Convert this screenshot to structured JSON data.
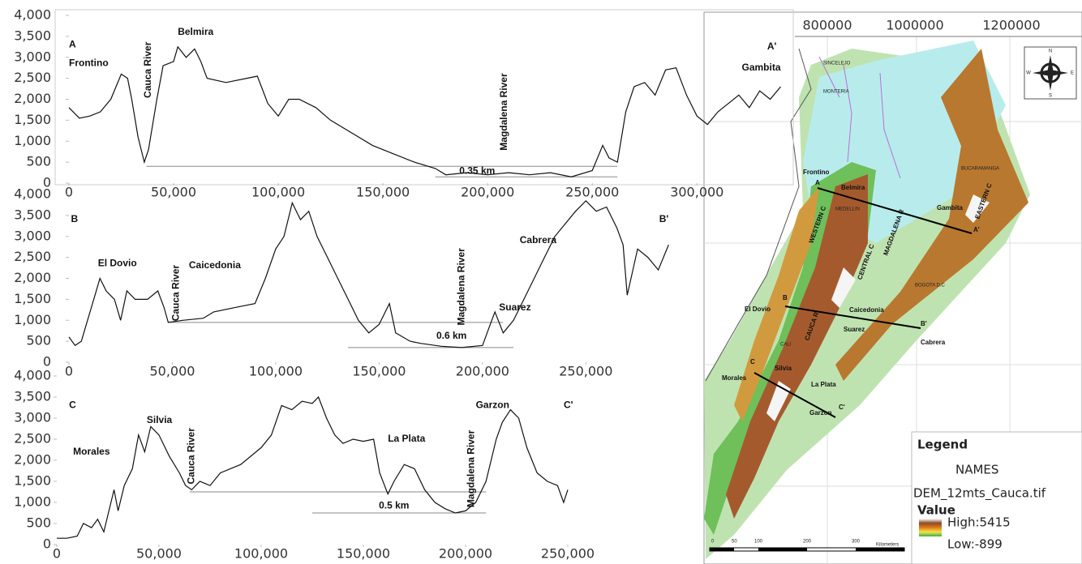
{
  "chart_data": [
    {
      "type": "line",
      "color": "#111111",
      "x": [
        0,
        5000,
        10000,
        15000,
        20000,
        25000,
        28000,
        30000,
        33000,
        36000,
        38000,
        42000,
        45000,
        50000,
        52000,
        56000,
        60000,
        63000,
        66000,
        75000,
        85000,
        90000,
        95000,
        100000,
        105000,
        110000,
        118000,
        125000,
        135000,
        145000,
        155000,
        165000,
        175000,
        180000,
        190000,
        200000,
        210000,
        220000,
        230000,
        240000,
        250000,
        255000,
        258000,
        262000,
        266000,
        270000,
        275000,
        280000,
        285000,
        290000,
        295000,
        300000,
        305000,
        310000,
        315000,
        320000,
        325000,
        330000,
        335000,
        340000
      ],
      "values": [
        1800,
        1550,
        1600,
        1700,
        2000,
        2600,
        2500,
        2000,
        1100,
        500,
        800,
        2000,
        2800,
        2900,
        3250,
        3000,
        3200,
        2900,
        2500,
        2400,
        2500,
        2550,
        1900,
        1600,
        2000,
        2000,
        1800,
        1500,
        1200,
        900,
        700,
        500,
        350,
        200,
        250,
        200,
        250,
        200,
        250,
        150,
        300,
        900,
        600,
        500,
        1700,
        2300,
        2400,
        2100,
        2700,
        2750,
        2100,
        1600,
        1400,
        1700,
        1900,
        2100,
        1800,
        2200,
        2000,
        2300
      ],
      "xlim": [
        0,
        346000
      ],
      "ylim": [
        0,
        4000
      ],
      "xticks": [
        0,
        {
          "value": 50000,
          "label": "50,000"
        },
        {
          "value": 100000,
          "label": "100,000"
        },
        {
          "value": 150000,
          "label": "150,000"
        },
        {
          "value": 200000,
          "label": "200,000"
        },
        {
          "value": 250000,
          "label": "250,000"
        },
        {
          "value": 300000,
          "label": "300,000"
        }
      ],
      "yticks": [
        0,
        500,
        {
          "value": 1000,
          "label": "1,000"
        },
        {
          "value": 1500,
          "label": "1,500"
        },
        {
          "value": 2000,
          "label": "2,000"
        },
        {
          "value": 2500,
          "label": "2,500"
        },
        {
          "value": 3000,
          "label": "3,000"
        },
        {
          "value": 3500,
          "label": "3,500"
        },
        {
          "value": 4000,
          "label": "4,000"
        }
      ],
      "reference_lines": [
        {
          "y": 400,
          "x": [
            37000,
            262000
          ]
        },
        {
          "y": 150,
          "x": [
            175000,
            262000
          ]
        }
      ],
      "annotations": [
        "A",
        "Frontino",
        "Cauca River",
        "Belmira",
        "Magdalena River",
        "0.35 km",
        "A'",
        "Gambita"
      ]
    },
    {
      "type": "line",
      "color": "#111111",
      "x": [
        0,
        3000,
        6000,
        9000,
        12000,
        15000,
        18000,
        22000,
        25000,
        28000,
        32000,
        38000,
        43000,
        46000,
        48000,
        55000,
        65000,
        70000,
        80000,
        90000,
        95000,
        100000,
        104000,
        108000,
        112000,
        116000,
        120000,
        125000,
        130000,
        135000,
        140000,
        145000,
        150000,
        155000,
        158000,
        165000,
        170000,
        180000,
        190000,
        200000,
        203000,
        206000,
        210000,
        215000,
        220000,
        225000,
        230000,
        235000,
        240000,
        245000,
        250000,
        255000,
        260000,
        265000,
        268000,
        270000,
        275000,
        280000,
        285000,
        290000
      ],
      "values": [
        600,
        400,
        500,
        1000,
        1500,
        2000,
        1700,
        1500,
        1000,
        1700,
        1500,
        1500,
        1700,
        1300,
        950,
        1000,
        1050,
        1200,
        1300,
        1400,
        2000,
        2700,
        3000,
        3800,
        3400,
        3600,
        3000,
        2500,
        2000,
        1500,
        1000,
        700,
        900,
        1400,
        700,
        500,
        450,
        380,
        350,
        400,
        800,
        1200,
        700,
        1000,
        1500,
        2000,
        2500,
        3000,
        3300,
        3600,
        3850,
        3600,
        3700,
        3200,
        2800,
        1600,
        2700,
        2500,
        2200,
        2800
      ],
      "xlim": [
        0,
        304000
      ],
      "ylim": [
        0,
        4000
      ],
      "xticks": [
        0,
        {
          "value": 50000,
          "label": "50,000"
        },
        {
          "value": 100000,
          "label": "100,000"
        },
        {
          "value": 150000,
          "label": "150,000"
        },
        {
          "value": 200000,
          "label": "200,000"
        },
        {
          "value": 250000,
          "label": "250,000"
        }
      ],
      "yticks": [
        0,
        500,
        {
          "value": 1000,
          "label": "1,000"
        },
        {
          "value": 1500,
          "label": "1,500"
        },
        {
          "value": 2000,
          "label": "2,000"
        },
        {
          "value": 2500,
          "label": "2,500"
        },
        {
          "value": 3000,
          "label": "3,000"
        },
        {
          "value": 3500,
          "label": "3,500"
        },
        {
          "value": 4000,
          "label": "4,000"
        }
      ],
      "reference_lines": [
        {
          "y": 950,
          "x": [
            48000,
            210000
          ]
        },
        {
          "y": 350,
          "x": [
            135000,
            215000
          ]
        }
      ],
      "annotations": [
        "B",
        "El Dovio",
        "Cauca River",
        "Caicedonia",
        "Magdalena River",
        "Suarez",
        "0.6 km",
        "Cabrera",
        "B'"
      ]
    },
    {
      "type": "line",
      "color": "#111111",
      "x": [
        0,
        5000,
        10000,
        13000,
        17000,
        20000,
        23000,
        25000,
        28000,
        30000,
        33000,
        37000,
        40000,
        43000,
        46000,
        50000,
        55000,
        60000,
        63000,
        66000,
        70000,
        75000,
        80000,
        90000,
        100000,
        105000,
        110000,
        115000,
        120000,
        125000,
        128000,
        132000,
        136000,
        140000,
        145000,
        150000,
        155000,
        158000,
        162000,
        165000,
        170000,
        175000,
        180000,
        185000,
        190000,
        195000,
        200000,
        205000,
        210000,
        215000,
        218000,
        222000,
        226000,
        230000,
        235000,
        240000,
        245000,
        248000,
        250000
      ],
      "values": [
        150,
        150,
        200,
        500,
        400,
        600,
        300,
        700,
        1300,
        800,
        1400,
        1800,
        2600,
        2200,
        2800,
        2600,
        2100,
        1700,
        1400,
        1300,
        1500,
        1400,
        1700,
        1900,
        2300,
        2600,
        3300,
        3200,
        3400,
        3350,
        3500,
        3000,
        2600,
        2400,
        2500,
        2450,
        2500,
        1700,
        1200,
        1500,
        1900,
        1800,
        1300,
        1000,
        850,
        750,
        800,
        1000,
        1500,
        2500,
        2900,
        3200,
        3000,
        2300,
        1700,
        1500,
        1400,
        1000,
        1300
      ],
      "xlim": [
        0,
        313500
      ],
      "ylim": [
        0,
        4000
      ],
      "xticks": [
        0,
        {
          "value": 50000,
          "label": "50,000"
        },
        {
          "value": 100000,
          "label": "100,000"
        },
        {
          "value": 150000,
          "label": "150,000"
        },
        {
          "value": 200000,
          "label": "200,000"
        },
        {
          "value": 250000,
          "label": "250,000"
        }
      ],
      "yticks": [
        0,
        500,
        {
          "value": 1000,
          "label": "1,000"
        },
        {
          "value": 1500,
          "label": "1,500"
        },
        {
          "value": 2000,
          "label": "2,000"
        },
        {
          "value": 2500,
          "label": "2,500"
        },
        {
          "value": 3000,
          "label": "3,000"
        },
        {
          "value": 3500,
          "label": "3,500"
        },
        {
          "value": 4000,
          "label": "4,000"
        }
      ],
      "reference_lines": [
        {
          "y": 1250,
          "x": [
            65000,
            210000
          ]
        },
        {
          "y": 750,
          "x": [
            125000,
            210000
          ]
        }
      ],
      "annotations": [
        "C",
        "Morales",
        "Silvia",
        "Cauca River",
        "La Plata",
        "Garzon",
        "Magdalena River",
        "0.5 km",
        "C'"
      ]
    }
  ],
  "map": {
    "coordinates": [
      "800000",
      "1000000",
      "1200000"
    ],
    "labels": [
      "SINCELEJO",
      "MONTERIA",
      "Frontino",
      "A",
      "Belmira",
      "MEDELLIN",
      "Gambita",
      "A'",
      "BUCARAMANGA",
      "WESTERN C",
      "CENTRAL C",
      "MAGDALENA R",
      "EASTERN C",
      "CAUCA R",
      "B",
      "El Dovio",
      "Caicedonia",
      "BOGOTA D.C",
      "Suarez",
      "B'",
      "Cabrera",
      "CALI",
      "C",
      "Morales",
      "Silvia",
      "La Plata",
      "Garzon",
      "C'"
    ],
    "compass": [
      "N",
      "S",
      "E",
      "W"
    ],
    "scale": [
      "0",
      "50",
      "100",
      "200",
      "300",
      "Kilometers"
    ],
    "legend": {
      "title": "Legend",
      "layer": "NAMES",
      "raster": "DEM_12mts_Cauca.tif",
      "value": "Value",
      "high": "High:5415",
      "low": "Low:-899"
    }
  }
}
